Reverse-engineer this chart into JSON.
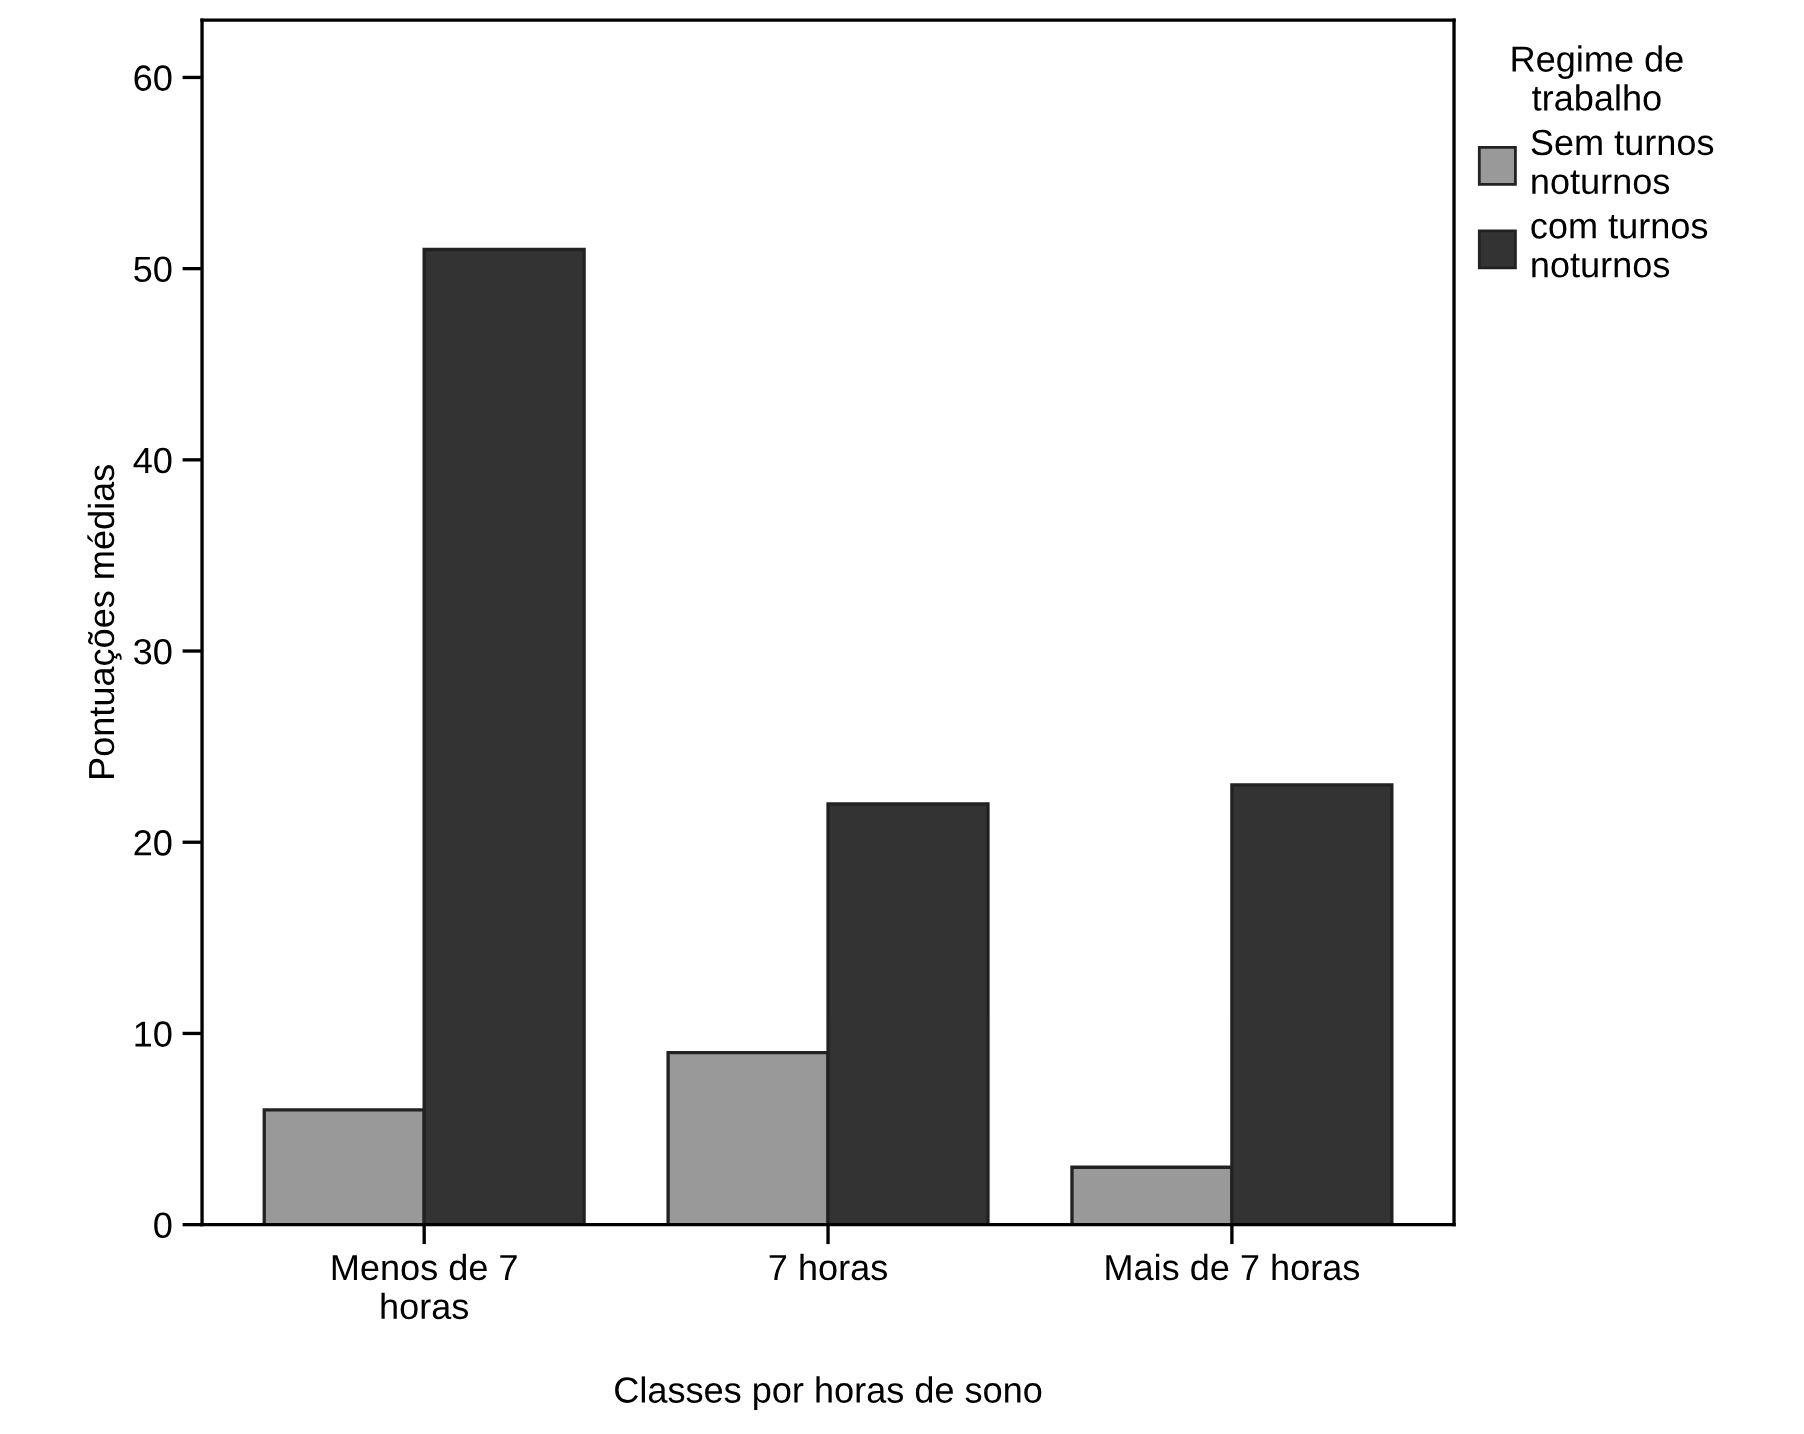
{
  "chart_data": {
    "type": "bar",
    "xlabel": "Classes por horas de sono",
    "ylabel": "Pontuações médias",
    "legend_title": "Regime de\ntrabalho",
    "categories": [
      "Menos de 7\nhoras",
      "7 horas",
      "Mais de 7 horas"
    ],
    "series": [
      {
        "name": "Sem turnos\nnoturnos",
        "color": "#999999",
        "values": [
          6,
          9,
          3
        ]
      },
      {
        "name": "com turnos\nnoturnos",
        "color": "#333333",
        "values": [
          51,
          22,
          23
        ]
      }
    ],
    "ylim": [
      0,
      63
    ],
    "yticks": [
      0,
      10,
      20,
      30,
      40,
      50,
      60
    ],
    "grid": false,
    "legend": "right"
  }
}
